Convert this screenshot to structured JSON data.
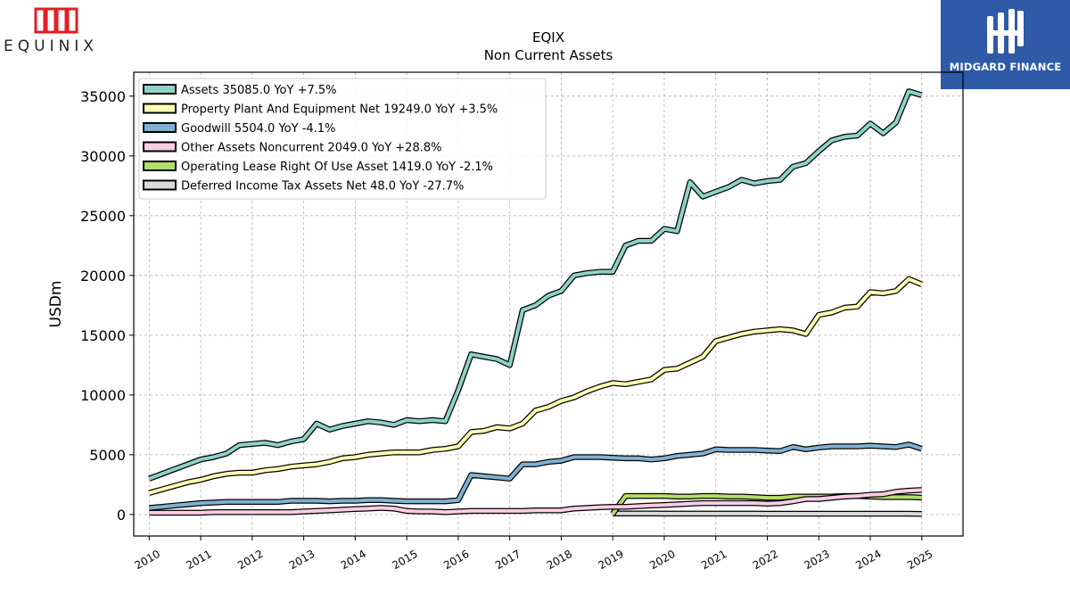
{
  "logos": {
    "left_brand": "EQUINIX",
    "right_brand": "MIDGARD FINANCE"
  },
  "chart_data": {
    "type": "line",
    "title": "EQIX",
    "subtitle": "Non Current  Assets",
    "ylabel": "USDm",
    "xlabel": "",
    "xlim": [
      2009.7,
      2025.8
    ],
    "ylim": [
      -1800,
      37000
    ],
    "yticks": [
      0,
      5000,
      10000,
      15000,
      20000,
      25000,
      30000,
      35000
    ],
    "xticks": [
      2010,
      2011,
      2012,
      2013,
      2014,
      2015,
      2016,
      2017,
      2018,
      2019,
      2020,
      2021,
      2022,
      2023,
      2024,
      2025
    ],
    "grid": true,
    "legend_position": "top-left",
    "series": [
      {
        "name": "Assets  35085.0 YoY +7.5%",
        "color": "#8dd3c7",
        "points": [
          [
            2010.0,
            3000
          ],
          [
            2010.25,
            3400
          ],
          [
            2010.5,
            3800
          ],
          [
            2010.75,
            4200
          ],
          [
            2011.0,
            4600
          ],
          [
            2011.25,
            4800
          ],
          [
            2011.5,
            5100
          ],
          [
            2011.75,
            5800
          ],
          [
            2012.0,
            5900
          ],
          [
            2012.25,
            6000
          ],
          [
            2012.5,
            5800
          ],
          [
            2012.75,
            6100
          ],
          [
            2013.0,
            6300
          ],
          [
            2013.25,
            7600
          ],
          [
            2013.5,
            7100
          ],
          [
            2013.75,
            7400
          ],
          [
            2014.0,
            7600
          ],
          [
            2014.25,
            7800
          ],
          [
            2014.5,
            7700
          ],
          [
            2014.75,
            7500
          ],
          [
            2015.0,
            7900
          ],
          [
            2015.25,
            7800
          ],
          [
            2015.5,
            7900
          ],
          [
            2015.75,
            7800
          ],
          [
            2016.0,
            10400
          ],
          [
            2016.25,
            13400
          ],
          [
            2016.5,
            13200
          ],
          [
            2016.75,
            13000
          ],
          [
            2017.0,
            12500
          ],
          [
            2017.25,
            17100
          ],
          [
            2017.5,
            17500
          ],
          [
            2017.75,
            18300
          ],
          [
            2018.0,
            18700
          ],
          [
            2018.25,
            20000
          ],
          [
            2018.5,
            20200
          ],
          [
            2018.75,
            20300
          ],
          [
            2019.0,
            20300
          ],
          [
            2019.25,
            22500
          ],
          [
            2019.5,
            22900
          ],
          [
            2019.75,
            22900
          ],
          [
            2020.0,
            23900
          ],
          [
            2020.25,
            23700
          ],
          [
            2020.5,
            27800
          ],
          [
            2020.75,
            26600
          ],
          [
            2021.0,
            27000
          ],
          [
            2021.25,
            27400
          ],
          [
            2021.5,
            28000
          ],
          [
            2021.75,
            27700
          ],
          [
            2022.0,
            27900
          ],
          [
            2022.25,
            28000
          ],
          [
            2022.5,
            29100
          ],
          [
            2022.75,
            29400
          ],
          [
            2023.0,
            30400
          ],
          [
            2023.25,
            31300
          ],
          [
            2023.5,
            31600
          ],
          [
            2023.75,
            31700
          ],
          [
            2024.0,
            32700
          ],
          [
            2024.25,
            31900
          ],
          [
            2024.5,
            32800
          ],
          [
            2024.75,
            35400
          ],
          [
            2025.0,
            35085
          ]
        ]
      },
      {
        "name": "Property Plant And Equipment Net  19249.0 YoY +3.5%",
        "color": "#ffffb3",
        "points": [
          [
            2010.0,
            1800
          ],
          [
            2010.25,
            2100
          ],
          [
            2010.5,
            2400
          ],
          [
            2010.75,
            2700
          ],
          [
            2011.0,
            2900
          ],
          [
            2011.25,
            3200
          ],
          [
            2011.5,
            3400
          ],
          [
            2011.75,
            3500
          ],
          [
            2012.0,
            3500
          ],
          [
            2012.25,
            3700
          ],
          [
            2012.5,
            3800
          ],
          [
            2012.75,
            4000
          ],
          [
            2013.0,
            4100
          ],
          [
            2013.25,
            4200
          ],
          [
            2013.5,
            4400
          ],
          [
            2013.75,
            4700
          ],
          [
            2014.0,
            4800
          ],
          [
            2014.25,
            5000
          ],
          [
            2014.5,
            5100
          ],
          [
            2014.75,
            5200
          ],
          [
            2015.0,
            5200
          ],
          [
            2015.25,
            5200
          ],
          [
            2015.5,
            5400
          ],
          [
            2015.75,
            5500
          ],
          [
            2016.0,
            5700
          ],
          [
            2016.25,
            6900
          ],
          [
            2016.5,
            7000
          ],
          [
            2016.75,
            7300
          ],
          [
            2017.0,
            7200
          ],
          [
            2017.25,
            7600
          ],
          [
            2017.5,
            8700
          ],
          [
            2017.75,
            9000
          ],
          [
            2018.0,
            9500
          ],
          [
            2018.25,
            9800
          ],
          [
            2018.5,
            10300
          ],
          [
            2018.75,
            10700
          ],
          [
            2019.0,
            11000
          ],
          [
            2019.25,
            10900
          ],
          [
            2019.5,
            11100
          ],
          [
            2019.75,
            11300
          ],
          [
            2020.0,
            12100
          ],
          [
            2020.25,
            12200
          ],
          [
            2020.5,
            12700
          ],
          [
            2020.75,
            13200
          ],
          [
            2021.0,
            14500
          ],
          [
            2021.25,
            14800
          ],
          [
            2021.5,
            15100
          ],
          [
            2021.75,
            15300
          ],
          [
            2022.0,
            15400
          ],
          [
            2022.25,
            15500
          ],
          [
            2022.5,
            15400
          ],
          [
            2022.75,
            15100
          ],
          [
            2023.0,
            16700
          ],
          [
            2023.25,
            16900
          ],
          [
            2023.5,
            17300
          ],
          [
            2023.75,
            17400
          ],
          [
            2024.0,
            18600
          ],
          [
            2024.25,
            18500
          ],
          [
            2024.5,
            18700
          ],
          [
            2024.75,
            19700
          ],
          [
            2025.0,
            19249
          ]
        ]
      },
      {
        "name": "Goodwill  5504.0 YoY -4.1%",
        "color": "#80b1d3",
        "points": [
          [
            2010.0,
            550
          ],
          [
            2010.25,
            650
          ],
          [
            2010.5,
            750
          ],
          [
            2010.75,
            850
          ],
          [
            2011.0,
            950
          ],
          [
            2011.25,
            1000
          ],
          [
            2011.5,
            1050
          ],
          [
            2011.75,
            1050
          ],
          [
            2012.0,
            1050
          ],
          [
            2012.25,
            1050
          ],
          [
            2012.5,
            1050
          ],
          [
            2012.75,
            1150
          ],
          [
            2013.0,
            1150
          ],
          [
            2013.25,
            1150
          ],
          [
            2013.5,
            1100
          ],
          [
            2013.75,
            1150
          ],
          [
            2014.0,
            1150
          ],
          [
            2014.25,
            1200
          ],
          [
            2014.5,
            1200
          ],
          [
            2014.75,
            1150
          ],
          [
            2015.0,
            1100
          ],
          [
            2015.25,
            1100
          ],
          [
            2015.5,
            1100
          ],
          [
            2015.75,
            1100
          ],
          [
            2016.0,
            1200
          ],
          [
            2016.25,
            3300
          ],
          [
            2016.5,
            3200
          ],
          [
            2016.75,
            3100
          ],
          [
            2017.0,
            3000
          ],
          [
            2017.25,
            4200
          ],
          [
            2017.5,
            4200
          ],
          [
            2017.75,
            4400
          ],
          [
            2018.0,
            4500
          ],
          [
            2018.25,
            4800
          ],
          [
            2018.5,
            4800
          ],
          [
            2018.75,
            4800
          ],
          [
            2019.0,
            4750
          ],
          [
            2019.25,
            4700
          ],
          [
            2019.5,
            4700
          ],
          [
            2019.75,
            4600
          ],
          [
            2020.0,
            4700
          ],
          [
            2020.25,
            4900
          ],
          [
            2020.5,
            5000
          ],
          [
            2020.75,
            5100
          ],
          [
            2021.0,
            5450
          ],
          [
            2021.25,
            5400
          ],
          [
            2021.5,
            5400
          ],
          [
            2021.75,
            5400
          ],
          [
            2022.0,
            5350
          ],
          [
            2022.25,
            5300
          ],
          [
            2022.5,
            5650
          ],
          [
            2022.75,
            5450
          ],
          [
            2023.0,
            5600
          ],
          [
            2023.25,
            5700
          ],
          [
            2023.5,
            5700
          ],
          [
            2023.75,
            5700
          ],
          [
            2024.0,
            5750
          ],
          [
            2024.25,
            5700
          ],
          [
            2024.5,
            5650
          ],
          [
            2024.75,
            5850
          ],
          [
            2025.0,
            5504
          ]
        ]
      },
      {
        "name": "Other Assets Noncurrent  2049.0 YoY +28.8%",
        "color": "#fccde5",
        "points": [
          [
            2010.0,
            150
          ],
          [
            2010.25,
            150
          ],
          [
            2010.5,
            150
          ],
          [
            2010.75,
            150
          ],
          [
            2011.0,
            150
          ],
          [
            2011.25,
            200
          ],
          [
            2011.5,
            200
          ],
          [
            2011.75,
            200
          ],
          [
            2012.0,
            200
          ],
          [
            2012.25,
            200
          ],
          [
            2012.5,
            200
          ],
          [
            2012.75,
            200
          ],
          [
            2013.0,
            250
          ],
          [
            2013.25,
            300
          ],
          [
            2013.5,
            350
          ],
          [
            2013.75,
            400
          ],
          [
            2014.0,
            450
          ],
          [
            2014.25,
            500
          ],
          [
            2014.5,
            550
          ],
          [
            2014.75,
            500
          ],
          [
            2015.0,
            300
          ],
          [
            2015.25,
            250
          ],
          [
            2015.5,
            250
          ],
          [
            2015.75,
            200
          ],
          [
            2016.0,
            250
          ],
          [
            2016.25,
            300
          ],
          [
            2016.5,
            300
          ],
          [
            2016.75,
            300
          ],
          [
            2017.0,
            300
          ],
          [
            2017.25,
            300
          ],
          [
            2017.5,
            350
          ],
          [
            2017.75,
            350
          ],
          [
            2018.0,
            350
          ],
          [
            2018.25,
            500
          ],
          [
            2018.5,
            550
          ],
          [
            2018.75,
            600
          ],
          [
            2019.0,
            650
          ],
          [
            2019.25,
            650
          ],
          [
            2019.5,
            700
          ],
          [
            2019.75,
            750
          ],
          [
            2020.0,
            800
          ],
          [
            2020.25,
            850
          ],
          [
            2020.5,
            900
          ],
          [
            2020.75,
            950
          ],
          [
            2021.0,
            950
          ],
          [
            2021.25,
            950
          ],
          [
            2021.5,
            950
          ],
          [
            2021.75,
            950
          ],
          [
            2022.0,
            900
          ],
          [
            2022.25,
            950
          ],
          [
            2022.5,
            1100
          ],
          [
            2022.75,
            1300
          ],
          [
            2023.0,
            1300
          ],
          [
            2023.25,
            1400
          ],
          [
            2023.5,
            1500
          ],
          [
            2023.75,
            1550
          ],
          [
            2024.0,
            1650
          ],
          [
            2024.25,
            1700
          ],
          [
            2024.5,
            1900
          ],
          [
            2024.75,
            2000
          ],
          [
            2025.0,
            2049
          ]
        ]
      },
      {
        "name": "Operating Lease Right Of Use Asset  1419.0 YoY -2.1%",
        "color": "#b3de69",
        "points": [
          [
            2019.0,
            50
          ],
          [
            2019.25,
            1550
          ],
          [
            2019.5,
            1550
          ],
          [
            2019.75,
            1550
          ],
          [
            2020.0,
            1550
          ],
          [
            2020.25,
            1500
          ],
          [
            2020.5,
            1500
          ],
          [
            2020.75,
            1550
          ],
          [
            2021.0,
            1550
          ],
          [
            2021.25,
            1500
          ],
          [
            2021.5,
            1500
          ],
          [
            2021.75,
            1450
          ],
          [
            2022.0,
            1400
          ],
          [
            2022.25,
            1400
          ],
          [
            2022.5,
            1500
          ],
          [
            2022.75,
            1500
          ],
          [
            2023.0,
            1500
          ],
          [
            2023.25,
            1500
          ],
          [
            2023.5,
            1550
          ],
          [
            2023.75,
            1550
          ],
          [
            2024.0,
            1500
          ],
          [
            2024.25,
            1450
          ],
          [
            2024.5,
            1450
          ],
          [
            2024.75,
            1450
          ],
          [
            2025.0,
            1419
          ]
        ]
      },
      {
        "name": "Deferred Income Tax Assets Net  48.0 YoY -27.7%",
        "color": "#d9d9d9",
        "points": [
          [
            2019.0,
            80
          ],
          [
            2019.25,
            80
          ],
          [
            2019.5,
            80
          ],
          [
            2019.75,
            80
          ],
          [
            2020.0,
            75
          ],
          [
            2020.25,
            75
          ],
          [
            2020.5,
            75
          ],
          [
            2020.75,
            75
          ],
          [
            2021.0,
            70
          ],
          [
            2021.25,
            70
          ],
          [
            2021.5,
            70
          ],
          [
            2021.75,
            70
          ],
          [
            2022.0,
            65
          ],
          [
            2022.25,
            65
          ],
          [
            2022.5,
            65
          ],
          [
            2022.75,
            65
          ],
          [
            2023.0,
            65
          ],
          [
            2023.25,
            65
          ],
          [
            2023.5,
            65
          ],
          [
            2023.75,
            65
          ],
          [
            2024.0,
            66
          ],
          [
            2024.25,
            66
          ],
          [
            2024.5,
            66
          ],
          [
            2024.75,
            66
          ],
          [
            2025.0,
            48
          ]
        ]
      }
    ]
  }
}
